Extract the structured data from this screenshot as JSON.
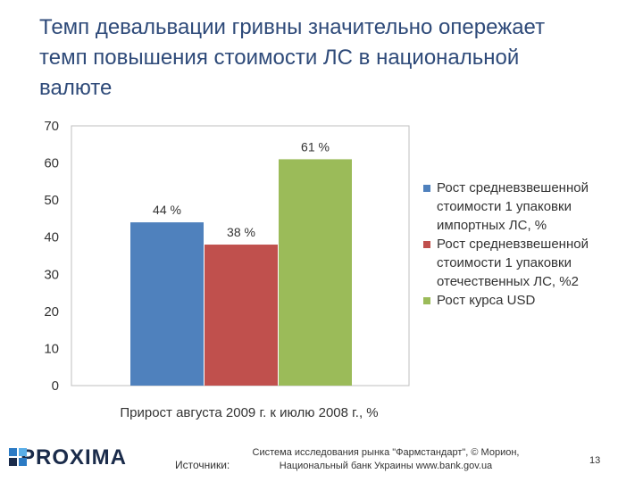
{
  "slide": {
    "title_lines": [
      "Темп девальвации гривны значительно опережает",
      "темп повышения стоимости ЛС в национальной",
      "валюте"
    ]
  },
  "chart_data": {
    "type": "bar",
    "title": "",
    "xlabel": "Прирост августа 2009 г. к июлю 2008 г., %",
    "ylabel": "",
    "ylim": [
      0,
      70
    ],
    "yticks": [
      0,
      10,
      20,
      30,
      40,
      50,
      60,
      70
    ],
    "grid": false,
    "legend_position": "right",
    "series": [
      {
        "name": "Рост средневзвешенной стоимости 1 упаковки импортных ЛС, %",
        "legend_lines": [
          "Рост средневзвешенной",
          "стоимости 1 упаковки",
          "импортных ЛС, %"
        ],
        "value": 44,
        "label": "44 %",
        "color": "#4f81bd"
      },
      {
        "name": "Рост средневзвешенной стоимости 1 упаковки отечественных ЛС, %2",
        "legend_lines": [
          "Рост средневзвешенной",
          "стоимости 1 упаковки",
          "отечественных ЛС, %2"
        ],
        "value": 38,
        "label": "38 %",
        "color": "#c0504d"
      },
      {
        "name": "Рост курса USD",
        "legend_lines": [
          "Рост курса USD"
        ],
        "value": 61,
        "label": "61 %",
        "color": "#9bbb59"
      }
    ]
  },
  "footer": {
    "logo_text": "PROXIMA",
    "logo_colors": [
      "#2b7ac4",
      "#5aaee8",
      "#1a2b4a",
      "#2b7ac4"
    ],
    "sources_label": "Источники:",
    "sources_line1": "Система исследования рынка \"Фармстандарт\", © Морион,",
    "sources_line2": "Национальный банк Украины  www.bank.gov.ua",
    "page_number": "13"
  }
}
